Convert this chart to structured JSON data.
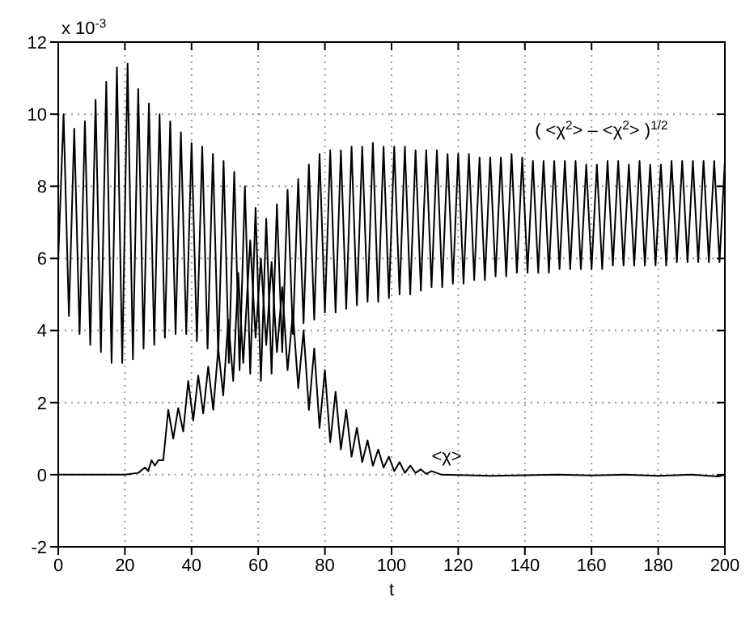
{
  "chart_data": {
    "type": "line",
    "xlabel": "t",
    "annotations": [
      "x 10$^{-3}$"
    ],
    "xlim": [
      0,
      200
    ],
    "xticks": [
      0,
      20,
      40,
      60,
      80,
      100,
      120,
      140,
      160,
      180,
      200
    ],
    "ylim": [
      -2,
      12
    ],
    "yticks": [
      -2,
      0,
      2,
      4,
      6,
      8,
      10,
      12
    ],
    "grid": true,
    "legend": false,
    "marker": "none",
    "line_style": "solid",
    "series": [
      {
        "name": "( <χ$^{2}$> – <χ$^{2}$> )$^{1/2}$",
        "color": "#000000",
        "x": [
          0,
          1.6,
          3.2,
          4.8,
          6.4,
          8,
          9.6,
          11.2,
          12.8,
          14.4,
          16,
          17.6,
          19.2,
          20.8,
          22.4,
          24,
          25.6,
          27.2,
          28.8,
          30.4,
          32,
          33.6,
          35.2,
          36.8,
          38.4,
          40,
          41.6,
          43.2,
          44.8,
          46.4,
          48,
          49.6,
          51.2,
          52.8,
          54.4,
          56,
          57.6,
          59.2,
          60.8,
          62.4,
          64,
          65.6,
          67.2,
          68.8,
          70.4,
          72,
          73.6,
          75.2,
          76.8,
          78.4,
          80,
          81.6,
          83.2,
          84.8,
          86.4,
          88,
          89.6,
          91.2,
          92.8,
          94.4,
          96,
          97.6,
          99.2,
          100.8,
          102.4,
          104,
          105.6,
          107.2,
          108.8,
          110.4,
          112,
          113.6,
          115.2,
          116.8,
          118.4,
          120,
          121.6,
          123.2,
          124.8,
          126.4,
          128,
          129.6,
          131.2,
          132.8,
          134.4,
          136,
          137.6,
          139.2,
          140.8,
          142.4,
          144,
          145.6,
          147.2,
          148.8,
          150.4,
          152,
          153.6,
          155.2,
          156.8,
          158.4,
          160,
          161.6,
          163.2,
          164.8,
          166.4,
          168,
          169.6,
          171.2,
          172.8,
          174.4,
          176,
          177.6,
          179.2,
          180.8,
          182.4,
          184,
          185.6,
          187.2,
          188.8,
          190.4,
          192,
          193.6,
          195.2,
          196.8,
          198.4,
          200
        ],
        "values": [
          6,
          10.0,
          4.4,
          9.6,
          3.9,
          9.8,
          3.6,
          10.4,
          3.4,
          10.9,
          3.1,
          11.3,
          3.1,
          11.4,
          3.2,
          10.7,
          3.5,
          10.3,
          3.6,
          10.0,
          3.8,
          9.8,
          3.9,
          9.5,
          3.9,
          9.2,
          3.7,
          9.1,
          3.5,
          8.9,
          3.3,
          8.7,
          3.1,
          8.4,
          2.9,
          8.0,
          2.8,
          7.4,
          2.6,
          7.1,
          2.8,
          7.5,
          3.4,
          7.9,
          3.9,
          8.2,
          4.2,
          8.6,
          4.3,
          8.9,
          4.5,
          9.0,
          4.5,
          9.0,
          4.6,
          9.1,
          4.7,
          9.1,
          4.8,
          9.2,
          4.8,
          9.1,
          4.9,
          9.1,
          5.0,
          9.1,
          5.0,
          9.0,
          5.1,
          9.0,
          5.2,
          9.0,
          5.2,
          8.9,
          5.3,
          8.9,
          5.3,
          8.9,
          5.4,
          8.8,
          5.4,
          8.8,
          5.5,
          8.8,
          5.5,
          8.9,
          5.6,
          8.8,
          5.6,
          8.7,
          5.6,
          8.7,
          5.6,
          8.7,
          5.7,
          8.7,
          5.7,
          8.7,
          5.7,
          8.6,
          5.7,
          8.6,
          5.7,
          8.7,
          5.8,
          8.7,
          5.8,
          8.6,
          5.8,
          8.7,
          5.8,
          8.6,
          5.8,
          8.6,
          5.8,
          8.7,
          5.9,
          8.7,
          5.9,
          8.7,
          5.9,
          8.7,
          5.9,
          8.7,
          5.9,
          8.7
        ]
      },
      {
        "name": "<χ>",
        "color": "#000000",
        "x": [
          0,
          20,
          24,
          26,
          27,
          28,
          29,
          30,
          31.5,
          33,
          34.5,
          36,
          37.5,
          39,
          40.5,
          42,
          43.5,
          45,
          46.5,
          48,
          49.5,
          51,
          52.5,
          54,
          55.5,
          57.6,
          59.2,
          60.8,
          62.4,
          64,
          65.6,
          67.2,
          68.8,
          70.4,
          72,
          73.6,
          75.2,
          76.8,
          78.4,
          80,
          81.6,
          83.2,
          84.8,
          86.4,
          88,
          89.6,
          91.2,
          92.8,
          94.4,
          96,
          97.6,
          99.2,
          100.8,
          102.4,
          104,
          105.6,
          107.2,
          108.8,
          110.4,
          112,
          115,
          130,
          150,
          160,
          170,
          180,
          190,
          198,
          200
        ],
        "values": [
          0,
          0,
          0.05,
          0.2,
          0.1,
          0.4,
          0.25,
          0.4,
          0.4,
          1.8,
          1.0,
          1.85,
          1.2,
          2.6,
          1.5,
          2.75,
          1.7,
          3.0,
          1.8,
          3.5,
          2.2,
          4.3,
          2.6,
          5.6,
          3.1,
          6.5,
          3.8,
          6.0,
          3.6,
          5.9,
          3.4,
          5.2,
          2.9,
          4.5,
          2.4,
          4.0,
          1.8,
          3.5,
          1.3,
          2.9,
          0.9,
          2.3,
          0.7,
          1.8,
          0.5,
          1.3,
          0.35,
          0.95,
          0.25,
          0.7,
          0.2,
          0.5,
          0.1,
          0.35,
          0.05,
          0.25,
          0.05,
          0.15,
          0.02,
          0.1,
          0,
          -0.03,
          0,
          -0.02,
          0,
          -0.03,
          0,
          -0.05,
          0
        ]
      }
    ]
  }
}
